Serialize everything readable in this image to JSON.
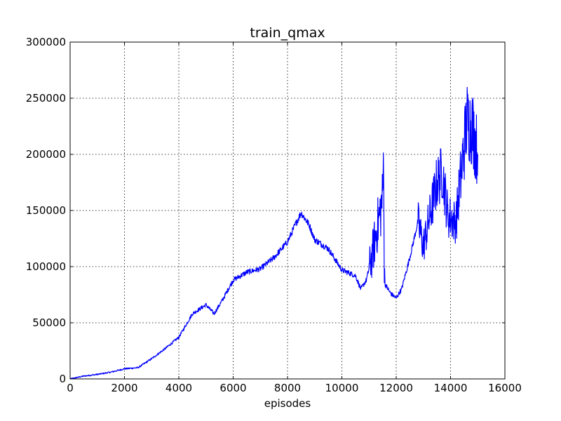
{
  "chart_data": {
    "type": "line",
    "title": "train_qmax",
    "xlabel": "episodes",
    "ylabel": "",
    "xlim": [
      0,
      16000
    ],
    "ylim": [
      0,
      300000
    ],
    "xticks": [
      0,
      2000,
      4000,
      6000,
      8000,
      10000,
      12000,
      14000,
      16000
    ],
    "yticks": [
      0,
      50000,
      100000,
      150000,
      200000,
      250000,
      300000
    ],
    "xtick_labels": [
      "0",
      "2000",
      "4000",
      "6000",
      "8000",
      "10000",
      "12000",
      "14000",
      "16000"
    ],
    "ytick_labels": [
      "0",
      "50000",
      "100000",
      "150000",
      "200000",
      "250000",
      "300000"
    ],
    "grid": true,
    "line_color": "#0000ff",
    "series": [
      {
        "x": [
          0,
          500,
          1000,
          1500,
          2000,
          2500,
          3000,
          3500,
          4000,
          4500,
          5000,
          5300,
          5600,
          6000,
          6500,
          7000,
          7500,
          8000,
          8300,
          8500,
          8800,
          9000,
          9500,
          10000,
          10500,
          10700,
          10900,
          11100,
          11300,
          11500,
          11540,
          11560,
          11600,
          11800,
          12000,
          12200,
          12500,
          12800,
          13000,
          13300,
          13500,
          13700,
          13900,
          14200,
          14400,
          14600,
          14800,
          15000
        ],
        "y": [
          0,
          2500,
          4000,
          6000,
          9000,
          10000,
          18000,
          27000,
          37000,
          58000,
          66000,
          58000,
          70000,
          88000,
          95000,
          98000,
          108000,
          122000,
          138000,
          148000,
          137000,
          124000,
          116000,
          97000,
          92000,
          80000,
          88000,
          108000,
          135000,
          160000,
          205000,
          90000,
          84000,
          76000,
          72000,
          80000,
          108000,
          140000,
          118000,
          152000,
          175000,
          185000,
          145000,
          140000,
          185000,
          230000,
          225000,
          200000
        ]
      }
    ]
  }
}
